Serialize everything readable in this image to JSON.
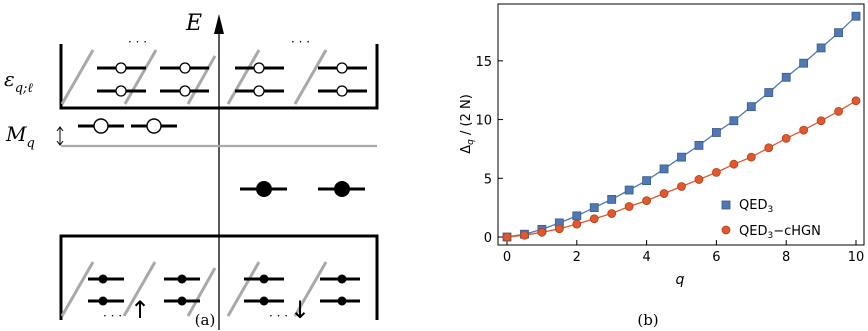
{
  "panel_a": {
    "caption": "(a)",
    "energy_label": "E",
    "epsilon_label": "ε",
    "epsilon_sub": "q;ℓ",
    "mass_label": "M",
    "mass_sub": "q",
    "dots_top": "· · ·",
    "dots_bottom": "· · ·",
    "spin_up": "↑",
    "spin_down": "↓"
  },
  "panel_b": {
    "caption": "(b)",
    "ylabel": "Δ",
    "ylabel_sub": "q",
    "ylabel_rest": " / (2 N)",
    "xlabel": "q",
    "legend": [
      {
        "label": "QED",
        "sub": "3",
        "rest": ""
      },
      {
        "label": "QED",
        "sub": "3",
        "rest": "−cHGN"
      }
    ]
  },
  "colors": {
    "qed3": "#4f78b4",
    "qed3_chgn": "#e0592e",
    "grey_hatch": "#a9a9a9",
    "line": "#000000"
  },
  "chart_data": {
    "type": "scatter",
    "xlim": [
      0,
      10
    ],
    "ylim": [
      0,
      19.5
    ],
    "x_ticks": [
      0,
      2,
      4,
      6,
      8,
      10
    ],
    "y_ticks": [
      0,
      5,
      10,
      15
    ],
    "grid": false,
    "legend_position": "bottom-right",
    "xlabel": "q",
    "ylabel": "Δq / (2 N)",
    "series": [
      {
        "name": "QED3",
        "marker": "square",
        "x": [
          0,
          0.5,
          1,
          1.5,
          2,
          2.5,
          3,
          3.5,
          4,
          4.5,
          5,
          5.5,
          6,
          6.5,
          7,
          7.5,
          8,
          8.5,
          9,
          9.5,
          10
        ],
        "values": [
          0.0,
          0.24,
          0.65,
          1.2,
          1.8,
          2.5,
          3.2,
          4.0,
          4.8,
          5.8,
          6.8,
          7.8,
          8.9,
          9.9,
          11.1,
          12.3,
          13.6,
          14.8,
          16.1,
          17.4,
          18.8
        ]
      },
      {
        "name": "QED3−cHGN",
        "marker": "circle",
        "x": [
          0,
          0.5,
          1,
          1.5,
          2,
          2.5,
          3,
          3.5,
          4,
          4.5,
          5,
          5.5,
          6,
          6.5,
          7,
          7.5,
          8,
          8.5,
          9,
          9.5,
          10
        ],
        "values": [
          0.0,
          0.15,
          0.4,
          0.7,
          1.1,
          1.55,
          2.0,
          2.6,
          3.1,
          3.7,
          4.3,
          4.9,
          5.5,
          6.2,
          6.8,
          7.6,
          8.4,
          9.1,
          9.9,
          10.7,
          11.6
        ]
      }
    ]
  }
}
